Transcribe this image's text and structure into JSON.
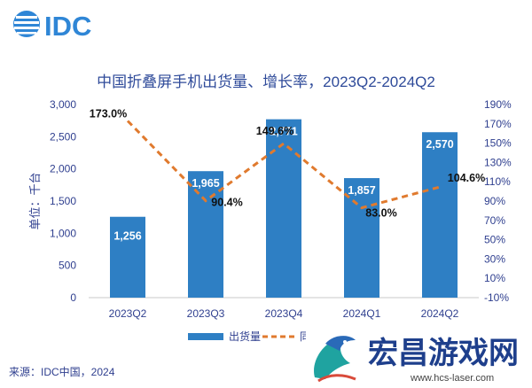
{
  "logo": {
    "text": "IDC",
    "color": "#2f86d6"
  },
  "chart_data": {
    "type": "bar+line",
    "title": "中国折叠屏手机出货量、增长率，2023Q2-2024Q2",
    "categories": [
      "2023Q2",
      "2023Q3",
      "2023Q4",
      "2024Q1",
      "2024Q2"
    ],
    "series": [
      {
        "name": "出货量",
        "type": "bar",
        "axis": "left",
        "values": [
          1256,
          1965,
          2771,
          1857,
          2570
        ],
        "labels": [
          "1,256",
          "1,965",
          "2,771",
          "1,857",
          "2,570"
        ],
        "color": "#2e7fc4"
      },
      {
        "name": "同比",
        "type": "line",
        "axis": "right",
        "values": [
          173.0,
          90.4,
          149.6,
          83.0,
          104.6
        ],
        "labels": [
          "173.0%",
          "90.4%",
          "149.6%",
          "83.0%",
          "104.6%"
        ],
        "color": "#e07a2e",
        "style": "dashed"
      }
    ],
    "ylabel": "单位：千台",
    "ylim": [
      0,
      3000
    ],
    "yticks": [
      "0",
      "500",
      "1,000",
      "1,500",
      "2,000",
      "2,500",
      "3,000"
    ],
    "y2lim": [
      -10,
      190
    ],
    "y2ticks": [
      "-10%",
      "10%",
      "30%",
      "50%",
      "70%",
      "90%",
      "110%",
      "130%",
      "150%",
      "170%",
      "190%"
    ],
    "legend": {
      "position": "bottom",
      "items": [
        "出货量",
        "同比"
      ]
    },
    "source": "来源：IDC中国，2024",
    "grid": false
  },
  "watermark": {
    "text": "宏昌游戏网",
    "url": "www.hcs-laser.com",
    "color": "#1e3f8c"
  }
}
